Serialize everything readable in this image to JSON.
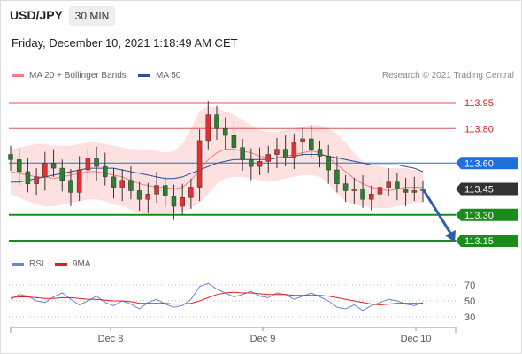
{
  "header": {
    "symbol": "USD/JPY",
    "timeframe": "30 MIN",
    "datetime": "Friday, December 10, 2021 1:18:49 AM CET"
  },
  "legend": {
    "ma20_label": "MA 20 + Bollinger Bands",
    "ma50_label": "MA 50",
    "rsi_label": "RSI",
    "rsi_ma_label": "9MA",
    "copyright": "Research © 2021 Trading Central"
  },
  "colors": {
    "ma20": "#f08080",
    "ma50": "#2c4f8f",
    "bollinger_fill": "#fde0e0",
    "bull": "#e03030",
    "bear": "#2e7d32",
    "resistance": "#e05050",
    "support": "#1a8c1a",
    "pivot": "#1e6fd9",
    "last": "#333333",
    "arrow": "#2f5f9e",
    "rsi": "#6b86d6",
    "rsi_ma": "#e02020"
  },
  "chart_data": [
    {
      "type": "line",
      "title": "USD/JPY 30 MIN",
      "x_ticks": [
        "Dec 8",
        "Dec 9",
        "Dec 10"
      ],
      "y_ticks": [
        113.15,
        113.3,
        113.45,
        113.6,
        113.8,
        113.95
      ],
      "ylim": [
        113.1,
        114.0
      ],
      "levels": [
        {
          "value": 113.95,
          "label": "113.95",
          "kind": "resistance"
        },
        {
          "value": 113.8,
          "label": "113.80",
          "kind": "resistance"
        },
        {
          "value": 113.6,
          "label": "113.60",
          "kind": "pivot"
        },
        {
          "value": 113.45,
          "label": "113.45",
          "kind": "last"
        },
        {
          "value": 113.3,
          "label": "113.30",
          "kind": "support"
        },
        {
          "value": 113.15,
          "label": "113.15",
          "kind": "support"
        }
      ],
      "series": [
        {
          "name": "MA 20 + Bollinger Bands",
          "values": [
            113.55,
            113.54,
            113.53,
            113.52,
            113.52,
            113.51,
            113.52,
            113.53,
            113.54,
            113.55,
            113.55,
            113.54,
            113.53,
            113.52,
            113.5,
            113.48,
            113.47,
            113.46,
            113.46,
            113.45,
            113.46,
            113.5,
            113.56,
            113.62,
            113.66,
            113.68,
            113.68,
            113.67,
            113.66,
            113.64,
            113.63,
            113.63,
            113.64,
            113.65,
            113.66,
            113.67,
            113.66,
            113.63,
            113.59,
            113.55,
            113.51,
            113.48,
            113.46,
            113.45,
            113.44,
            113.45,
            113.46,
            113.46,
            113.46
          ]
        },
        {
          "name": "MA 50",
          "values": [
            113.49,
            113.49,
            113.5,
            113.51,
            113.52,
            113.53,
            113.54,
            113.55,
            113.56,
            113.57,
            113.57,
            113.57,
            113.57,
            113.56,
            113.55,
            113.54,
            113.53,
            113.52,
            113.51,
            113.51,
            113.52,
            113.54,
            113.56,
            113.58,
            113.6,
            113.61,
            113.62,
            113.62,
            113.62,
            113.62,
            113.62,
            113.63,
            113.63,
            113.64,
            113.65,
            113.65,
            113.65,
            113.64,
            113.63,
            113.62,
            113.61,
            113.6,
            113.59,
            113.59,
            113.59,
            113.59,
            113.58,
            113.57,
            113.55
          ]
        }
      ],
      "bollinger": {
        "upper": [
          113.68,
          113.69,
          113.7,
          113.71,
          113.71,
          113.7,
          113.7,
          113.7,
          113.71,
          113.72,
          113.72,
          113.71,
          113.7,
          113.69,
          113.68,
          113.68,
          113.68,
          113.67,
          113.66,
          113.67,
          113.71,
          113.8,
          113.9,
          113.93,
          113.92,
          113.9,
          113.88,
          113.85,
          113.82,
          113.79,
          113.78,
          113.78,
          113.79,
          113.8,
          113.81,
          113.82,
          113.82,
          113.8,
          113.77,
          113.72,
          113.66,
          113.61,
          113.59,
          113.58,
          113.57,
          113.57,
          113.57,
          113.56,
          113.55
        ],
        "lower": [
          113.42,
          113.4,
          113.38,
          113.36,
          113.35,
          113.35,
          113.36,
          113.37,
          113.38,
          113.39,
          113.39,
          113.38,
          113.36,
          113.35,
          113.33,
          113.31,
          113.3,
          113.3,
          113.3,
          113.31,
          113.32,
          113.34,
          113.37,
          113.42,
          113.48,
          113.51,
          113.52,
          113.52,
          113.51,
          113.5,
          113.49,
          113.5,
          113.51,
          113.52,
          113.53,
          113.53,
          113.52,
          113.48,
          113.42,
          113.38,
          113.36,
          113.35,
          113.34,
          113.34,
          113.34,
          113.35,
          113.36,
          113.37,
          113.37
        ]
      },
      "close": [
        113.62,
        113.55,
        113.48,
        113.52,
        113.6,
        113.57,
        113.5,
        113.43,
        113.56,
        113.63,
        113.58,
        113.52,
        113.46,
        113.5,
        113.44,
        113.39,
        113.42,
        113.47,
        113.41,
        113.35,
        113.4,
        113.46,
        113.73,
        113.88,
        113.8,
        113.76,
        113.69,
        113.62,
        113.58,
        113.61,
        113.65,
        113.68,
        113.63,
        113.72,
        113.74,
        113.68,
        113.64,
        113.56,
        113.48,
        113.44,
        113.45,
        113.39,
        113.42,
        113.46,
        113.49,
        113.45,
        113.43,
        113.44,
        113.45
      ]
    },
    {
      "type": "line",
      "title": "",
      "y_ticks": [
        30,
        50,
        70
      ],
      "ylim": [
        20,
        80
      ],
      "series": [
        {
          "name": "RSI",
          "values": [
            52,
            58,
            56,
            50,
            48,
            55,
            60,
            52,
            45,
            50,
            56,
            48,
            44,
            50,
            46,
            40,
            48,
            52,
            46,
            42,
            44,
            52,
            68,
            72,
            65,
            60,
            55,
            58,
            62,
            56,
            54,
            60,
            58,
            52,
            56,
            60,
            55,
            50,
            42,
            40,
            45,
            38,
            44,
            48,
            52,
            50,
            46,
            44,
            48
          ]
        },
        {
          "name": "9MA",
          "values": [
            54,
            55,
            55,
            54,
            53,
            53,
            54,
            54,
            53,
            52,
            52,
            51,
            50,
            50,
            49,
            47,
            47,
            47,
            47,
            46,
            46,
            47,
            50,
            54,
            58,
            60,
            61,
            60,
            60,
            59,
            58,
            58,
            58,
            57,
            57,
            57,
            57,
            56,
            54,
            52,
            50,
            48,
            46,
            45,
            46,
            47,
            47,
            47,
            47
          ]
        }
      ]
    }
  ]
}
